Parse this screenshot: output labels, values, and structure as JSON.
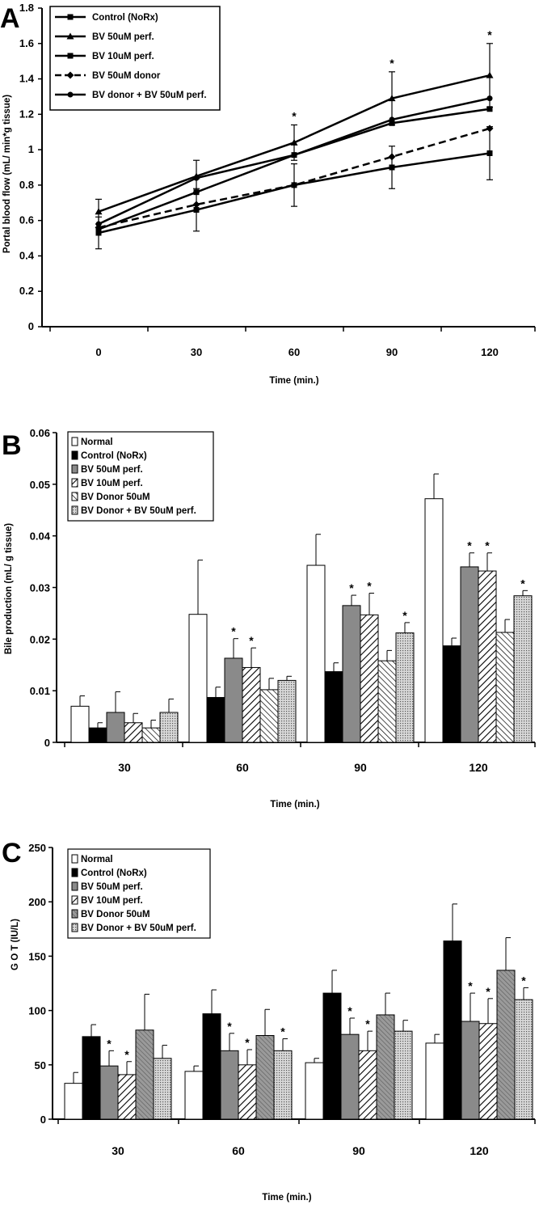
{
  "figure": {
    "panel_labels": [
      "A",
      "B",
      "C"
    ]
  },
  "chart_data": [
    {
      "type": "line",
      "panel": "A",
      "xlabel": "Time (min.)",
      "ylabel": "Portal blood flow (mL/ min*g tissue)",
      "x": [
        0,
        30,
        60,
        90,
        120
      ],
      "ylim": [
        0,
        1.8
      ],
      "yticks": [
        "0",
        "0.2",
        "0.4",
        "0.6",
        "0.8",
        "1",
        "1.2",
        "1.4",
        "1.6",
        "1.8"
      ],
      "legend_position": "top-left",
      "series": [
        {
          "name": "Control (NoRx)",
          "marker": "square",
          "dash": false,
          "values": [
            0.53,
            0.66,
            0.8,
            0.9,
            0.98
          ],
          "err": [
            0.09,
            0.12,
            0.12,
            0.12,
            0.15
          ]
        },
        {
          "name": "BV 50uM perf.",
          "marker": "triangle",
          "dash": false,
          "values": [
            0.65,
            0.85,
            1.04,
            1.29,
            1.42
          ],
          "err": [
            0.07,
            0.09,
            0.1,
            0.15,
            0.18
          ]
        },
        {
          "name": "BV 10uM perf.",
          "marker": "square",
          "dash": false,
          "values": [
            0.55,
            0.76,
            0.97,
            1.15,
            1.23
          ],
          "err": [
            0,
            0,
            0,
            0,
            0
          ]
        },
        {
          "name": "BV 50uM donor",
          "marker": "diamond",
          "dash": true,
          "values": [
            0.56,
            0.69,
            0.8,
            0.96,
            1.12
          ],
          "err": [
            0,
            0,
            0,
            0,
            0
          ]
        },
        {
          "name": "BV donor + BV 50uM perf.",
          "marker": "circle",
          "dash": false,
          "values": [
            0.58,
            0.84,
            0.97,
            1.17,
            1.29
          ],
          "err": [
            0,
            0,
            0,
            0,
            0
          ]
        }
      ],
      "significance": [
        {
          "x": 60,
          "label": "*"
        },
        {
          "x": 90,
          "label": "*"
        },
        {
          "x": 120,
          "label": "*"
        }
      ]
    },
    {
      "type": "bar",
      "panel": "B",
      "xlabel": "Time (min.)",
      "ylabel": "Bile production (mL/ g tissue)",
      "categories": [
        "30",
        "60",
        "90",
        "120"
      ],
      "ylim": [
        0,
        0.06
      ],
      "yticks": [
        "0",
        "0.01",
        "0.02",
        "0.03",
        "0.04",
        "0.05",
        "0.06"
      ],
      "legend_position": "top-left",
      "series": [
        {
          "name": "Normal",
          "pattern": "white",
          "values": [
            0.007,
            0.0248,
            0.0343,
            0.0472
          ],
          "err": [
            0.002,
            0.0105,
            0.006,
            0.0048
          ],
          "stars": [
            false,
            false,
            false,
            false
          ]
        },
        {
          "name": "Control (NoRx)",
          "pattern": "black",
          "values": [
            0.0028,
            0.0087,
            0.0137,
            0.0187
          ],
          "err": [
            0.001,
            0.002,
            0.0017,
            0.0015
          ],
          "stars": [
            false,
            false,
            false,
            false
          ]
        },
        {
          "name": "BV 50uM perf.",
          "pattern": "gray",
          "values": [
            0.0058,
            0.0163,
            0.0265,
            0.034
          ],
          "err": [
            0.004,
            0.0038,
            0.002,
            0.0027
          ],
          "stars": [
            false,
            true,
            true,
            true
          ]
        },
        {
          "name": "BV 10uM perf.",
          "pattern": "diag-wide",
          "values": [
            0.0038,
            0.0145,
            0.0247,
            0.0332
          ],
          "err": [
            0.0018,
            0.0038,
            0.0042,
            0.0035
          ],
          "stars": [
            false,
            true,
            true,
            true
          ]
        },
        {
          "name": "BV Donor 50uM",
          "pattern": "diag-fine",
          "values": [
            0.0028,
            0.0102,
            0.0158,
            0.0213
          ],
          "err": [
            0.0015,
            0.0022,
            0.002,
            0.0025
          ],
          "stars": [
            false,
            false,
            false,
            false
          ]
        },
        {
          "name": "BV Donor + BV 50uM perf.",
          "pattern": "dots",
          "values": [
            0.0058,
            0.012,
            0.0212,
            0.0284
          ],
          "err": [
            0.0026,
            0.0008,
            0.002,
            0.001
          ],
          "stars": [
            false,
            false,
            true,
            true
          ]
        }
      ]
    },
    {
      "type": "bar",
      "panel": "C",
      "xlabel": "Time (min.)",
      "ylabel": "G O T   (IU/L)",
      "categories": [
        "30",
        "60",
        "90",
        "120"
      ],
      "ylim": [
        0,
        250
      ],
      "yticks": [
        "0",
        "50",
        "100",
        "150",
        "200",
        "250"
      ],
      "legend_position": "top-left",
      "series": [
        {
          "name": "Normal",
          "pattern": "white",
          "values": [
            33,
            44,
            52,
            70
          ],
          "err": [
            10,
            5,
            4,
            8
          ],
          "stars": [
            false,
            false,
            false,
            false
          ]
        },
        {
          "name": "Control (NoRx)",
          "pattern": "black",
          "values": [
            76,
            97,
            116,
            164
          ],
          "err": [
            11,
            22,
            21,
            34
          ],
          "stars": [
            false,
            false,
            false,
            false
          ]
        },
        {
          "name": "BV 50uM perf.",
          "pattern": "gray",
          "values": [
            49,
            63,
            78,
            90
          ],
          "err": [
            14,
            16,
            15,
            26
          ],
          "stars": [
            true,
            true,
            true,
            true
          ]
        },
        {
          "name": "BV 10uM perf.",
          "pattern": "diag-wide",
          "values": [
            41,
            50,
            63,
            88
          ],
          "err": [
            12,
            14,
            18,
            23
          ],
          "stars": [
            true,
            true,
            true,
            true
          ]
        },
        {
          "name": "BV Donor 50uM",
          "pattern": "gray-fine",
          "values": [
            82,
            77,
            96,
            137
          ],
          "err": [
            33,
            24,
            20,
            30
          ],
          "stars": [
            false,
            false,
            false,
            false
          ]
        },
        {
          "name": "BV Donor + BV 50uM perf.",
          "pattern": "dots",
          "values": [
            56,
            63,
            81,
            110
          ],
          "err": [
            12,
            11,
            10,
            11
          ],
          "stars": [
            false,
            true,
            false,
            true
          ]
        }
      ]
    }
  ]
}
